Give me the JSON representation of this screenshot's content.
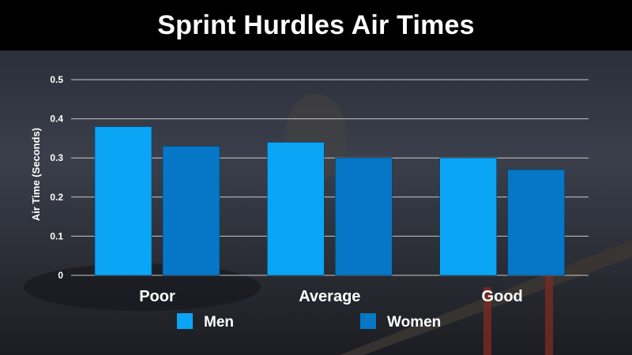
{
  "chart_data": {
    "type": "bar",
    "title": "Sprint Hurdles Air Times",
    "xlabel": "",
    "ylabel": "Air Time (Seconds)",
    "categories": [
      "Poor",
      "Average",
      "Good"
    ],
    "series": [
      {
        "name": "Men",
        "values": [
          0.38,
          0.34,
          0.3
        ],
        "color": "#0aa6f5"
      },
      {
        "name": "Women",
        "values": [
          0.33,
          0.3,
          0.27
        ],
        "color": "#0577c6"
      }
    ],
    "ylim": [
      0,
      0.5
    ],
    "yticks": [
      "0",
      "0.1",
      "0.2",
      "0.3",
      "0.4",
      "0.5"
    ],
    "grid": true,
    "legend_position": "bottom"
  }
}
